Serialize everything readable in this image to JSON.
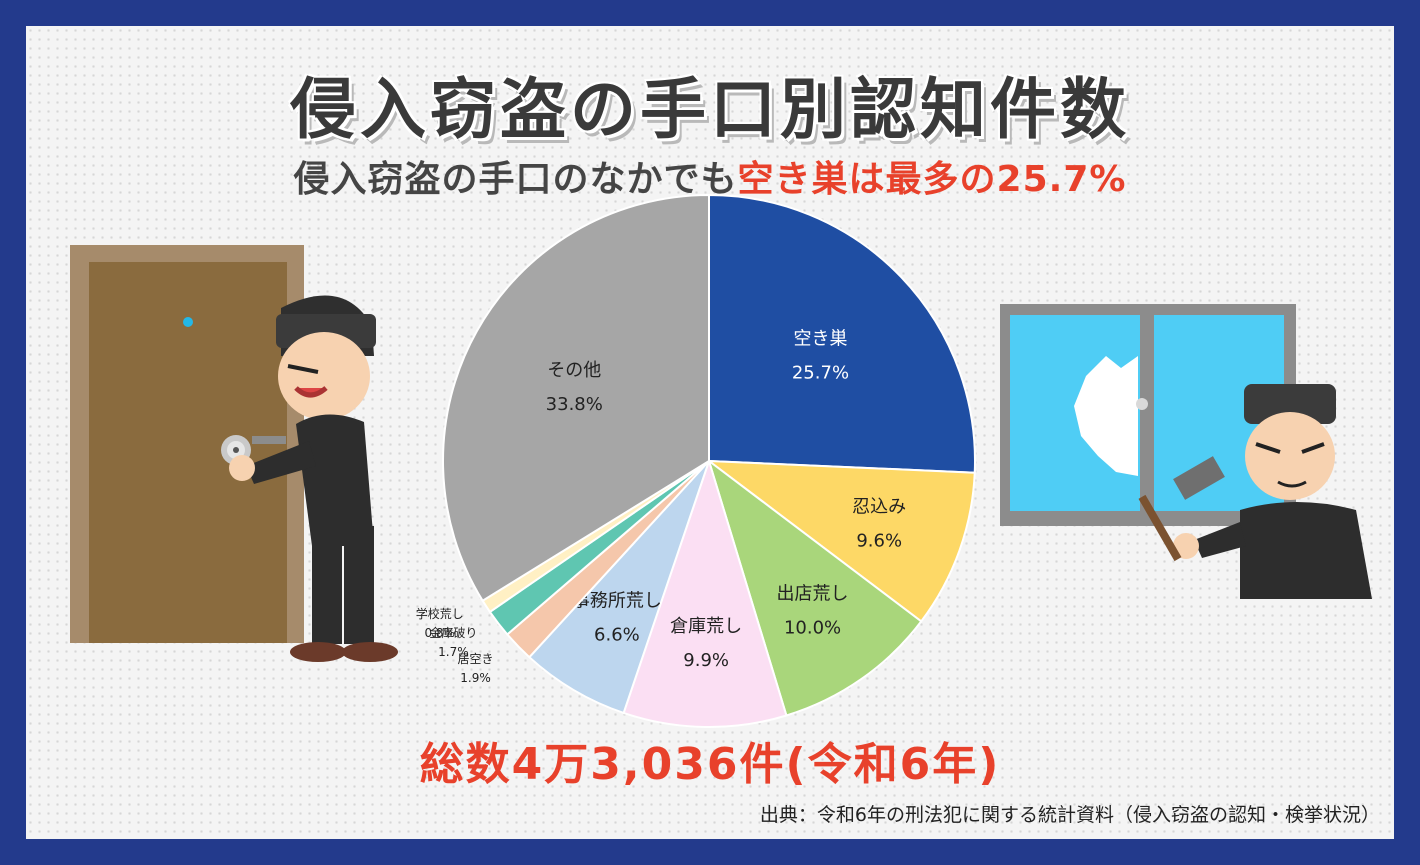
{
  "title": "侵入窃盗の手口別認知件数",
  "subtitle": {
    "prefix": "侵入窃盗の手口のなかでも",
    "highlight": "空き巣は最多の25.7%"
  },
  "total": "総数4万3,036件(令和6年)",
  "source": "出典：令和6年の刑法犯に関する統計資料（侵入窃盗の認知・検挙状況）",
  "chart_data": {
    "type": "pie",
    "title": "",
    "slices": [
      {
        "name": "空き巣",
        "value": 25.7,
        "label": "25.7%",
        "color": "#1f4ea3"
      },
      {
        "name": "忍込み",
        "value": 9.6,
        "label": "9.6%",
        "color": "#fdd866"
      },
      {
        "name": "出店荒し",
        "value": 10.0,
        "label": "10.0%",
        "color": "#a9d67b"
      },
      {
        "name": "倉庫荒し",
        "value": 9.9,
        "label": "9.9%",
        "color": "#fbdff3"
      },
      {
        "name": "事務所荒し",
        "value": 6.6,
        "label": "6.6%",
        "color": "#bdd6ee"
      },
      {
        "name": "居空き",
        "value": 1.9,
        "label": "1.9%",
        "color": "#f5c7ab"
      },
      {
        "name": "金庫破り",
        "value": 1.7,
        "label": "1.7%",
        "color": "#5fc6b1"
      },
      {
        "name": "学校荒し",
        "value": 0.8,
        "label": "0.8%",
        "color": "#fff0c4"
      },
      {
        "name": "その他",
        "value": 33.8,
        "label": "33.8%",
        "color": "#a6a6a6"
      }
    ]
  }
}
